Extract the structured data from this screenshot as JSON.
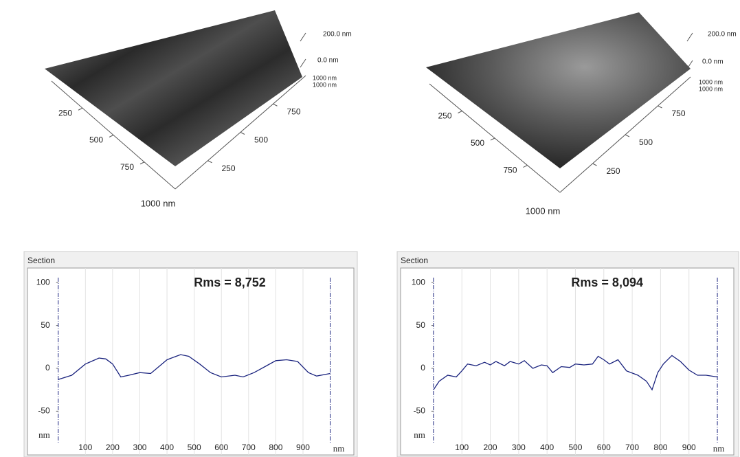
{
  "surfaces": [
    {
      "z_ticks": [
        "200.0 nm",
        "0.0 nm"
      ],
      "end_labels": [
        "1000 nm",
        "1000 nm"
      ],
      "xlim": [
        0,
        1000
      ],
      "x_ticks": [
        250,
        500,
        750
      ],
      "x_end": "1000 nm",
      "ylim": [
        0,
        1000
      ],
      "y_ticks": [
        250,
        500,
        750
      ]
    },
    {
      "z_ticks": [
        "200.0 nm",
        "0.0 nm"
      ],
      "end_labels": [
        "1000 nm",
        "1000 nm"
      ],
      "xlim": [
        0,
        1000
      ],
      "x_ticks": [
        250,
        500,
        750
      ],
      "x_end": "1000 nm",
      "ylim": [
        0,
        1000
      ],
      "y_ticks": [
        250,
        500,
        750
      ]
    }
  ],
  "chart_data": [
    {
      "type": "line",
      "panel_title": "Section",
      "annotation": "Rms = 8,752",
      "xlabel": "nm",
      "ylabel": "nm",
      "xlim": [
        -113,
        1087
      ],
      "ylim": [
        -101,
        117
      ],
      "xticks": [
        100,
        200,
        300,
        400,
        500,
        600,
        700,
        800,
        900
      ],
      "yticks": [
        100,
        50,
        0,
        -50
      ],
      "cursors": [
        0,
        1000
      ],
      "grid": true,
      "series": [
        {
          "color": "#1a237e",
          "x": [
            0,
            50,
            100,
            150,
            175,
            200,
            230,
            260,
            300,
            340,
            370,
            400,
            450,
            480,
            520,
            560,
            600,
            650,
            680,
            720,
            760,
            800,
            840,
            880,
            920,
            950,
            1000
          ],
          "values": [
            -13,
            -8,
            5,
            12,
            11,
            5,
            -10,
            -8,
            -5,
            -6,
            2,
            10,
            16,
            14,
            5,
            -5,
            -10,
            -8,
            -10,
            -5,
            2,
            9,
            10,
            8,
            -5,
            -9,
            -6
          ]
        }
      ]
    },
    {
      "type": "line",
      "panel_title": "Section",
      "annotation": "Rms = 8,094",
      "xlabel": "nm",
      "ylabel": "nm",
      "xlim": [
        -116,
        1058
      ],
      "ylim": [
        -101,
        117
      ],
      "xticks": [
        100,
        200,
        300,
        400,
        500,
        600,
        700,
        800,
        900
      ],
      "yticks": [
        100,
        50,
        0,
        -50
      ],
      "cursors": [
        0,
        1000
      ],
      "grid": true,
      "series": [
        {
          "color": "#1a237e",
          "x": [
            0,
            20,
            50,
            80,
            100,
            120,
            150,
            180,
            200,
            220,
            250,
            270,
            300,
            320,
            350,
            380,
            400,
            420,
            450,
            480,
            500,
            530,
            560,
            580,
            600,
            620,
            650,
            680,
            720,
            750,
            770,
            790,
            810,
            840,
            870,
            900,
            930,
            960,
            1000
          ],
          "values": [
            -25,
            -15,
            -8,
            -10,
            -3,
            5,
            3,
            7,
            4,
            8,
            3,
            8,
            5,
            9,
            0,
            4,
            3,
            -5,
            2,
            1,
            5,
            4,
            5,
            14,
            10,
            5,
            10,
            -3,
            -8,
            -15,
            -25,
            -5,
            5,
            15,
            8,
            -2,
            -8,
            -8,
            -10
          ]
        }
      ]
    }
  ]
}
